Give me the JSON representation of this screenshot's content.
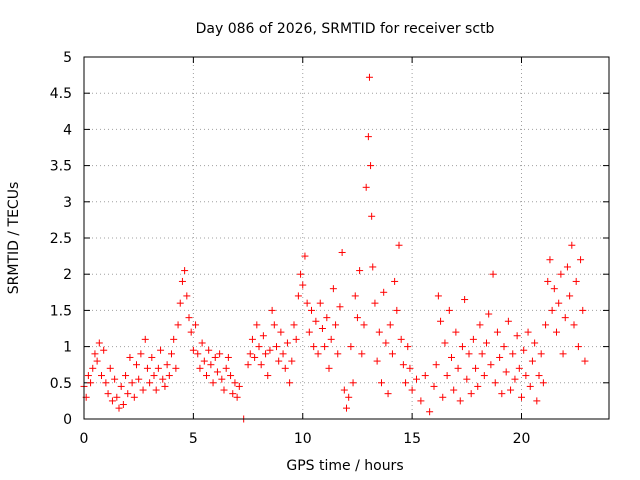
{
  "colors": {
    "points": "#ff0000",
    "axes": "#000000",
    "grid": "#a0a0a0",
    "background": "#ffffff"
  },
  "chart_data": {
    "type": "scatter",
    "title": "Day 086 of 2026, SRMTID for receiver sctb",
    "xlabel": "GPS time / hours",
    "ylabel": "SRMTID / TECUs",
    "xlim": [
      0,
      24
    ],
    "ylim": [
      0,
      5
    ],
    "xticks": [
      0,
      5,
      10,
      15,
      20
    ],
    "xtick_labels": [
      "0",
      "5",
      "10",
      "15",
      "20"
    ],
    "yticks": [
      0,
      0.5,
      1,
      1.5,
      2,
      2.5,
      3,
      3.5,
      4,
      4.5,
      5
    ],
    "ytick_labels": [
      "0",
      "0.5",
      "1",
      "1.5",
      "2",
      "2.5",
      "3",
      "3.5",
      "4",
      "4.5",
      "5"
    ],
    "grid": true,
    "marker": "+",
    "series": [
      {
        "name": "SRMTID",
        "points": [
          [
            0.0,
            0.45
          ],
          [
            0.1,
            0.3
          ],
          [
            0.2,
            0.6
          ],
          [
            0.3,
            0.5
          ],
          [
            0.4,
            0.7
          ],
          [
            0.5,
            0.9
          ],
          [
            0.6,
            0.8
          ],
          [
            0.7,
            1.05
          ],
          [
            0.8,
            0.6
          ],
          [
            0.9,
            0.95
          ],
          [
            1.0,
            0.5
          ],
          [
            1.1,
            0.35
          ],
          [
            1.2,
            0.7
          ],
          [
            1.3,
            0.25
          ],
          [
            1.4,
            0.55
          ],
          [
            1.5,
            0.3
          ],
          [
            1.6,
            0.15
          ],
          [
            1.7,
            0.45
          ],
          [
            1.8,
            0.2
          ],
          [
            1.9,
            0.6
          ],
          [
            2.0,
            0.35
          ],
          [
            2.1,
            0.85
          ],
          [
            2.2,
            0.5
          ],
          [
            2.3,
            0.3
          ],
          [
            2.4,
            0.75
          ],
          [
            2.5,
            0.55
          ],
          [
            2.6,
            0.9
          ],
          [
            2.7,
            0.4
          ],
          [
            2.8,
            1.1
          ],
          [
            2.9,
            0.7
          ],
          [
            3.0,
            0.5
          ],
          [
            3.1,
            0.85
          ],
          [
            3.2,
            0.6
          ],
          [
            3.3,
            0.4
          ],
          [
            3.4,
            0.7
          ],
          [
            3.5,
            0.95
          ],
          [
            3.6,
            0.55
          ],
          [
            3.7,
            0.45
          ],
          [
            3.8,
            0.75
          ],
          [
            3.9,
            0.6
          ],
          [
            4.0,
            0.9
          ],
          [
            4.1,
            1.1
          ],
          [
            4.2,
            0.7
          ],
          [
            4.3,
            1.3
          ],
          [
            4.4,
            1.6
          ],
          [
            4.5,
            1.9
          ],
          [
            4.6,
            2.05
          ],
          [
            4.7,
            1.7
          ],
          [
            4.8,
            1.4
          ],
          [
            4.9,
            1.2
          ],
          [
            5.0,
            0.95
          ],
          [
            5.1,
            1.3
          ],
          [
            5.2,
            0.9
          ],
          [
            5.3,
            0.7
          ],
          [
            5.4,
            1.05
          ],
          [
            5.5,
            0.8
          ],
          [
            5.6,
            0.6
          ],
          [
            5.7,
            0.95
          ],
          [
            5.8,
            0.75
          ],
          [
            5.9,
            0.5
          ],
          [
            6.0,
            0.85
          ],
          [
            6.1,
            0.65
          ],
          [
            6.2,
            0.9
          ],
          [
            6.3,
            0.55
          ],
          [
            6.4,
            0.4
          ],
          [
            6.5,
            0.7
          ],
          [
            6.6,
            0.85
          ],
          [
            6.7,
            0.6
          ],
          [
            6.8,
            0.35
          ],
          [
            6.9,
            0.5
          ],
          [
            7.0,
            0.3
          ],
          [
            7.1,
            0.45
          ],
          [
            7.3,
            0.0
          ],
          [
            7.5,
            0.75
          ],
          [
            7.6,
            0.9
          ],
          [
            7.7,
            1.1
          ],
          [
            7.8,
            0.85
          ],
          [
            7.9,
            1.3
          ],
          [
            8.0,
            1.0
          ],
          [
            8.1,
            0.75
          ],
          [
            8.2,
            1.15
          ],
          [
            8.3,
            0.9
          ],
          [
            8.4,
            0.6
          ],
          [
            8.5,
            0.95
          ],
          [
            8.6,
            1.5
          ],
          [
            8.7,
            1.3
          ],
          [
            8.8,
            1.0
          ],
          [
            8.9,
            0.8
          ],
          [
            9.0,
            1.2
          ],
          [
            9.1,
            0.9
          ],
          [
            9.2,
            0.7
          ],
          [
            9.3,
            1.05
          ],
          [
            9.4,
            0.5
          ],
          [
            9.5,
            0.8
          ],
          [
            9.6,
            1.3
          ],
          [
            9.7,
            1.1
          ],
          [
            9.8,
            1.7
          ],
          [
            9.9,
            2.0
          ],
          [
            10.0,
            1.85
          ],
          [
            10.1,
            2.25
          ],
          [
            10.2,
            1.6
          ],
          [
            10.3,
            1.2
          ],
          [
            10.4,
            1.5
          ],
          [
            10.5,
            1.0
          ],
          [
            10.6,
            1.35
          ],
          [
            10.7,
            0.9
          ],
          [
            10.8,
            1.6
          ],
          [
            10.9,
            1.25
          ],
          [
            11.0,
            1.0
          ],
          [
            11.1,
            1.4
          ],
          [
            11.2,
            0.7
          ],
          [
            11.3,
            1.1
          ],
          [
            11.4,
            1.8
          ],
          [
            11.5,
            1.3
          ],
          [
            11.6,
            0.9
          ],
          [
            11.7,
            1.55
          ],
          [
            11.8,
            2.3
          ],
          [
            11.9,
            0.4
          ],
          [
            12.0,
            0.15
          ],
          [
            12.1,
            0.3
          ],
          [
            12.2,
            1.0
          ],
          [
            12.3,
            0.5
          ],
          [
            12.4,
            1.7
          ],
          [
            12.5,
            1.4
          ],
          [
            12.6,
            2.05
          ],
          [
            12.7,
            0.9
          ],
          [
            12.8,
            1.3
          ],
          [
            12.9,
            3.2
          ],
          [
            13.0,
            3.9
          ],
          [
            13.05,
            4.72
          ],
          [
            13.1,
            3.5
          ],
          [
            13.15,
            2.8
          ],
          [
            13.2,
            2.1
          ],
          [
            13.3,
            1.6
          ],
          [
            13.4,
            0.8
          ],
          [
            13.5,
            1.2
          ],
          [
            13.6,
            0.5
          ],
          [
            13.7,
            1.75
          ],
          [
            13.8,
            1.05
          ],
          [
            13.9,
            0.35
          ],
          [
            14.0,
            1.3
          ],
          [
            14.1,
            0.9
          ],
          [
            14.2,
            1.9
          ],
          [
            14.3,
            1.5
          ],
          [
            14.4,
            2.4
          ],
          [
            14.5,
            1.1
          ],
          [
            14.6,
            0.75
          ],
          [
            14.7,
            0.5
          ],
          [
            14.8,
            1.0
          ],
          [
            14.9,
            0.7
          ],
          [
            15.0,
            0.4
          ],
          [
            15.2,
            0.55
          ],
          [
            15.4,
            0.25
          ],
          [
            15.6,
            0.6
          ],
          [
            15.8,
            0.1
          ],
          [
            16.0,
            0.45
          ],
          [
            16.1,
            0.75
          ],
          [
            16.2,
            1.7
          ],
          [
            16.3,
            1.35
          ],
          [
            16.4,
            0.3
          ],
          [
            16.5,
            1.05
          ],
          [
            16.6,
            0.6
          ],
          [
            16.7,
            1.5
          ],
          [
            16.8,
            0.85
          ],
          [
            16.9,
            0.4
          ],
          [
            17.0,
            1.2
          ],
          [
            17.1,
            0.7
          ],
          [
            17.2,
            0.25
          ],
          [
            17.3,
            1.0
          ],
          [
            17.4,
            1.65
          ],
          [
            17.5,
            0.55
          ],
          [
            17.6,
            0.9
          ],
          [
            17.7,
            0.35
          ],
          [
            17.8,
            1.1
          ],
          [
            17.9,
            0.7
          ],
          [
            18.0,
            0.45
          ],
          [
            18.1,
            1.3
          ],
          [
            18.2,
            0.9
          ],
          [
            18.3,
            0.6
          ],
          [
            18.4,
            1.05
          ],
          [
            18.5,
            1.45
          ],
          [
            18.6,
            0.75
          ],
          [
            18.7,
            2.0
          ],
          [
            18.8,
            0.5
          ],
          [
            18.9,
            1.2
          ],
          [
            19.0,
            0.85
          ],
          [
            19.1,
            0.35
          ],
          [
            19.2,
            1.0
          ],
          [
            19.3,
            0.65
          ],
          [
            19.4,
            1.35
          ],
          [
            19.5,
            0.4
          ],
          [
            19.6,
            0.9
          ],
          [
            19.7,
            0.55
          ],
          [
            19.8,
            1.15
          ],
          [
            19.9,
            0.7
          ],
          [
            20.0,
            0.3
          ],
          [
            20.1,
            0.95
          ],
          [
            20.2,
            0.6
          ],
          [
            20.3,
            1.2
          ],
          [
            20.4,
            0.45
          ],
          [
            20.5,
            0.8
          ],
          [
            20.6,
            1.05
          ],
          [
            20.7,
            0.25
          ],
          [
            20.8,
            0.6
          ],
          [
            20.9,
            0.9
          ],
          [
            21.0,
            0.5
          ],
          [
            21.1,
            1.3
          ],
          [
            21.2,
            1.9
          ],
          [
            21.3,
            2.2
          ],
          [
            21.4,
            1.5
          ],
          [
            21.5,
            1.8
          ],
          [
            21.6,
            1.2
          ],
          [
            21.7,
            1.6
          ],
          [
            21.8,
            2.0
          ],
          [
            21.9,
            0.9
          ],
          [
            22.0,
            1.4
          ],
          [
            22.1,
            2.1
          ],
          [
            22.2,
            1.7
          ],
          [
            22.3,
            2.4
          ],
          [
            22.4,
            1.3
          ],
          [
            22.5,
            1.9
          ],
          [
            22.6,
            1.0
          ],
          [
            22.7,
            2.2
          ],
          [
            22.8,
            1.5
          ],
          [
            22.9,
            0.8
          ]
        ]
      }
    ]
  }
}
